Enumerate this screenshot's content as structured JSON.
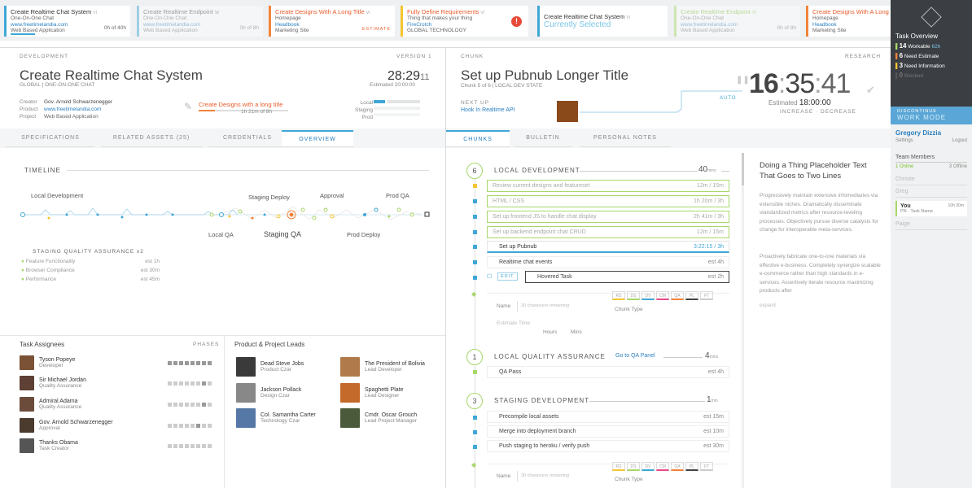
{
  "top_cards": [
    {
      "title": "Create Realtime Chat System",
      "num": "VI",
      "sub": "One-On-One Chat",
      "link": "www.freetimelandia.com",
      "proj": "Web Based Application",
      "count": "0h of 40h"
    },
    {
      "title": "Create Realtime Endpoint",
      "num": "VI",
      "sub": "One-On-One Chat",
      "link": "www.freetimelandia.com",
      "proj": "Web Based Application",
      "count": "0h of 8h"
    },
    {
      "title": "Create Designs With A Long Title",
      "num": "VI",
      "sub": "Homepage",
      "link": "Headbook",
      "proj": "Marketing Site",
      "count": "ESTIMATE"
    },
    {
      "title": "Fully Define Requirements",
      "num": "VI",
      "sub": "Thing that makes your thing",
      "link": "FireCrotch",
      "proj": "GLOBAL TECHNOLOGY",
      "count": "!"
    },
    {
      "title": "Create Realtime Chat System",
      "num": "VI",
      "sub": "Currently Selected",
      "link": "",
      "proj": "",
      "count": ""
    },
    {
      "title": "Create Realtime Endpoint",
      "num": "VI",
      "sub": "One-On-One Chat",
      "link": "www.freetimelandia.com",
      "proj": "Web Based Application",
      "count": "0h of 8h"
    },
    {
      "title": "Create Designs With A Long",
      "num": "",
      "sub": "Homepage",
      "link": "Headbook",
      "proj": "Marketing Site",
      "count": ""
    }
  ],
  "sidebar": {
    "title": "Task Overview",
    "stats": [
      {
        "num": "14",
        "label": "Workable",
        "extra": "62h"
      },
      {
        "num": "6",
        "label": "Need Estimate",
        "extra": ""
      },
      {
        "num": "3",
        "label": "Need Information",
        "extra": ""
      },
      {
        "num": "0",
        "label": "Blocked",
        "extra": ""
      }
    ],
    "discontinue": "DISCONTINUE",
    "work_mode": "WORK MODE",
    "user": "Gregory Dizzia",
    "settings": "Settings",
    "logout": "Logout",
    "team_title": "Team Members",
    "online": "1 Online",
    "offline": "3 Offline",
    "members": [
      "Christie",
      "Greg"
    ],
    "you": "You",
    "you_time": "10h 30m",
    "you_task": "PN · Task Name",
    "member_last": "Paige"
  },
  "left": {
    "section": "DEVELOPMENT",
    "version": "VERSION 1",
    "title": "Create Realtime Chat System",
    "subtitle_a": "GLOBAL",
    "subtitle_b": "ONE-ON-ONE CHAT",
    "timer_main": "28:29",
    "timer_sec": "11",
    "estimated": "Estimated 20:00:00",
    "creator_label": "Creator",
    "creator": "Gov. Arnold Schwarzenegger",
    "product_label": "Product",
    "product": "www.freetimelandia.com",
    "project_label": "Project",
    "project": "Web Based Application",
    "blocker_title": "Create Designs with a long title",
    "blocker_time": "1h 21m of 8h",
    "env": [
      "Local",
      "Staging",
      "Prod"
    ],
    "tabs": [
      "SPECIFICATIONS",
      "RELATED ASSETS (25)",
      "CREDENTIALS",
      "OVERVIEW"
    ],
    "timeline_title": "TIMELINE",
    "tl_labels_top": [
      "Local Development",
      "Staging Deploy",
      "Approval",
      "Prod QA"
    ],
    "tl_labels_bottom": [
      "Local QA",
      "Staging QA",
      "Prod Deploy"
    ],
    "sqa_title": "STAGING QUALITY ASSURANCE",
    "sqa_count": "x2",
    "sqa_items": [
      {
        "label": "Feature Functionality",
        "est": "est 1h"
      },
      {
        "label": "Browser Compliance",
        "est": "est 30m"
      },
      {
        "label": "Performance",
        "est": "est 45m"
      }
    ],
    "assignees_title": "Task Assignees",
    "phases_title": "PHASES",
    "assignees": [
      {
        "name": "Tyson Popeye",
        "role": "Developer"
      },
      {
        "name": "Sir Michael Jordan",
        "role": "Quality Assurance"
      },
      {
        "name": "Admiral Adama",
        "role": "Quality Assurance"
      },
      {
        "name": "Gov. Arnold Schwarzenegger",
        "role": "Approval"
      },
      {
        "name": "Thanks Obama",
        "role": "Task Creator"
      }
    ],
    "leads_title": "Product & Project Leads",
    "leads": [
      {
        "name": "Dead Steve Jobs",
        "role": "Product Czar"
      },
      {
        "name": "The President of Bolivia",
        "role": "Lead Developer"
      },
      {
        "name": "Jackson Pollack",
        "role": "Design Czar"
      },
      {
        "name": "Spaghetti Plate",
        "role": "Lead Designer"
      },
      {
        "name": "Col. Samantha Carter",
        "role": "Technology Czar"
      },
      {
        "name": "Cmdr. Oscar Grouch",
        "role": "Lead Project Manager"
      }
    ]
  },
  "right": {
    "section": "CHUNK",
    "research": "RESEARCH",
    "title": "Set up Pubnub Longer Title",
    "chunk_of": "Chunk 5 of 6",
    "dev_state": "LOCAL DEV STATE",
    "next_up": "NEXT UP",
    "next_link": "Hook In Realtime API",
    "auto": "AUTO",
    "timer_h": "16",
    "timer_m": "35",
    "timer_s": "41",
    "estimated": "Estimated",
    "est_value": "18:00:00",
    "increase": "INCREASE",
    "decrease": "DECREASE",
    "tabs": [
      "CHUNKS",
      "BULLETIN",
      "PERSONAL NOTES"
    ],
    "groups": [
      {
        "num": "6",
        "title": "LOCAL DEVELOPMENT",
        "link": "",
        "time": "40",
        "unit": "mins"
      },
      {
        "num": "1",
        "title": "LOCAL QUALITY ASSURANCE",
        "link": "Go to QA Panel",
        "time": "4",
        "unit": "mins"
      },
      {
        "num": "3",
        "title": "STAGING DEVELOPMENT",
        "link": "",
        "time": "1",
        "unit": "min"
      }
    ],
    "local_rows": [
      {
        "label": "Review current designs and featureset",
        "time": "12m / 15m"
      },
      {
        "label": "HTML / CSS",
        "time": "1h 20m / 3h"
      },
      {
        "label": "Set up frontend JS to handle chat display",
        "time": "2h 41m / 3h"
      },
      {
        "label": "Set up backend endpoint chat CRUD",
        "time": "12m / 15m"
      },
      {
        "label": "Set up Pubnub",
        "time": "3:22:15 / 3h"
      },
      {
        "label": "Realtime chat events",
        "time": "est 4h"
      },
      {
        "label": "Hovered Task",
        "time": "est 2h"
      }
    ],
    "edit": "EDIT",
    "name_label": "Name",
    "name_placeholder": "30 characters remaining",
    "chunk_type": "Chunk Type",
    "estimate_time": "Estimate Time",
    "hours": "Hours",
    "mins": "Mins",
    "qa_rows": [
      {
        "label": "QA Pass",
        "time": "est 4h"
      }
    ],
    "staging_rows": [
      {
        "label": "Precompile local assets",
        "time": "est 15m"
      },
      {
        "label": "Merge into deployment branch",
        "time": "est 10m"
      },
      {
        "label": "Push staging to heroku / verify push",
        "time": "est 30m"
      }
    ],
    "type_codes": [
      "RS",
      "DS",
      "DV",
      "CM",
      "QA",
      "PL",
      "FT"
    ],
    "desc_title": "Doing a Thing Placeholder Text That Goes to Two Lines",
    "desc_p1": "Progressively maintain extensive infomediaries via extensible niches. Dramatically disseminate standardized metrics after resource-leveling processes. Objectively pursue diverse catalysts for change for interoperable meta-services.",
    "desc_p2": "Proactively fabricate one-to-one materials via effective e-business. Completely synergize scalable e-commerce rather than high standards in e-services. Assertively iterate resource maximizing products after",
    "desc_more": "expand"
  }
}
